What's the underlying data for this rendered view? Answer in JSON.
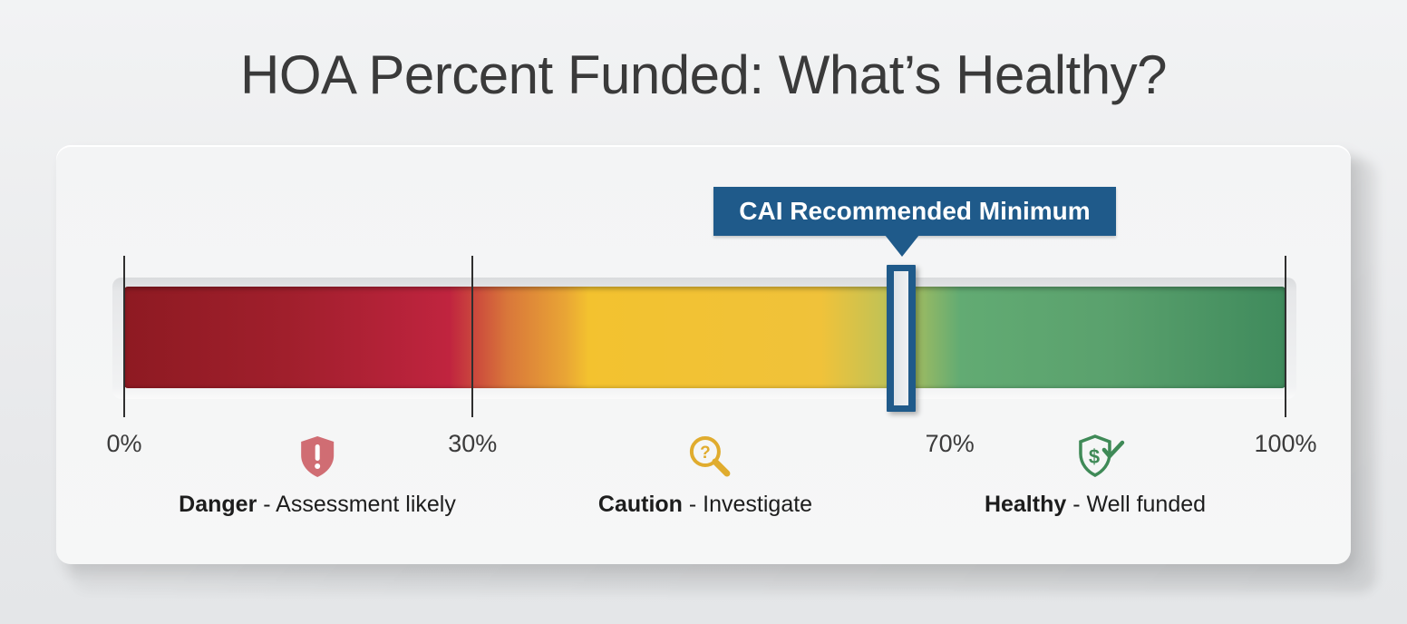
{
  "title": "HOA Percent Funded: What’s Healthy?",
  "callout": {
    "label": "CAI Recommended Minimum",
    "value_pct": 70,
    "color": "#1f5a8a"
  },
  "scale": {
    "ticks": [
      {
        "label": "0%",
        "value": 0
      },
      {
        "label": "30%",
        "value": 30
      },
      {
        "label": "70%",
        "value": 70
      },
      {
        "label": "100%",
        "value": 100
      }
    ]
  },
  "zones": [
    {
      "name": "Danger",
      "description": "- Assessment likely",
      "range": [
        0,
        30
      ],
      "icon": "shield-exclamation-icon",
      "color": "#d06d73"
    },
    {
      "name": "Caution",
      "description": "- Investigate",
      "range": [
        30,
        70
      ],
      "icon": "magnifier-question-icon",
      "color": "#e0ac2e"
    },
    {
      "name": "Healthy",
      "description": "- Well funded",
      "range": [
        70,
        100
      ],
      "icon": "shield-dollar-check-icon",
      "color": "#3f8a57"
    }
  ],
  "colors": {
    "danger_dark": "#8e1a22",
    "danger": "#c0243f",
    "caution_orange": "#d9773a",
    "caution": "#f3c22f",
    "transition": "#b9c25a",
    "healthy": "#62ab73",
    "healthy_dark": "#3f8a5c"
  },
  "chart_data": {
    "type": "gauge-bar",
    "title": "HOA Percent Funded: What’s Healthy?",
    "xlabel": "",
    "ylabel": "",
    "xlim": [
      0,
      100
    ],
    "tick_labels": [
      "0%",
      "30%",
      "70%",
      "100%"
    ],
    "tick_values": [
      0,
      30,
      70,
      100
    ],
    "segments": [
      {
        "label": "Danger - Assessment likely",
        "start": 0,
        "end": 30,
        "color": "red"
      },
      {
        "label": "Caution - Investigate",
        "start": 30,
        "end": 70,
        "color": "yellow"
      },
      {
        "label": "Healthy - Well funded",
        "start": 70,
        "end": 100,
        "color": "green"
      }
    ],
    "annotations": [
      {
        "text": "CAI Recommended Minimum",
        "x": 70
      }
    ],
    "grid": false,
    "legend": "below-bar"
  }
}
